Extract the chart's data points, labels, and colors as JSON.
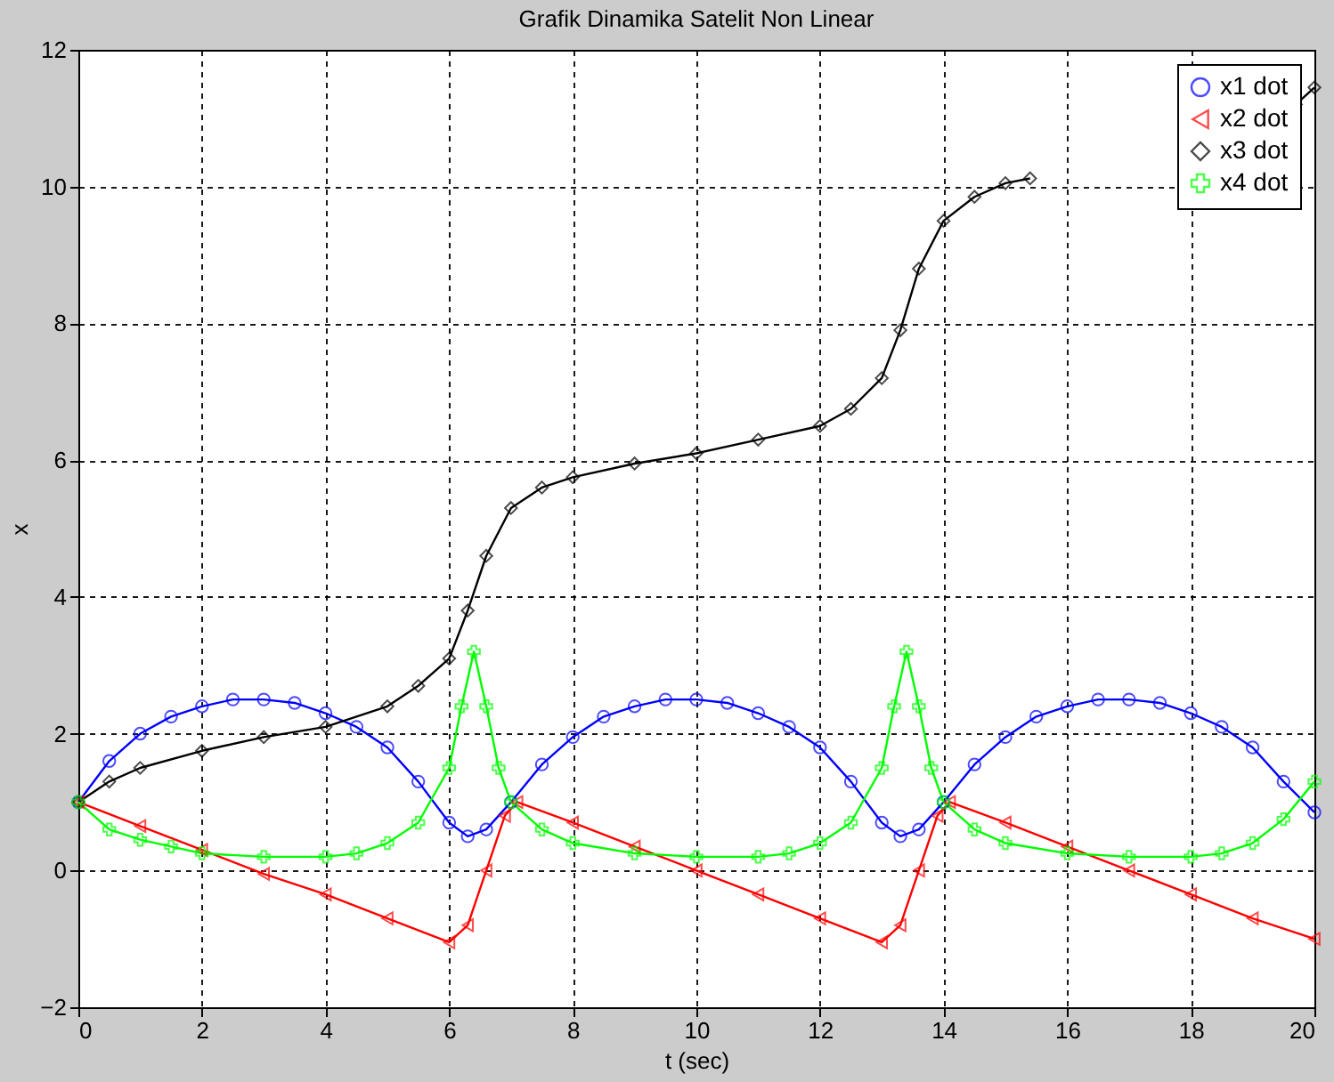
{
  "chart_data": {
    "type": "line",
    "title": "Grafik Dinamika Satelit Non Linear",
    "xlabel": "t (sec)",
    "ylabel": "x",
    "xlim": [
      0,
      20
    ],
    "xticks": [
      0,
      2,
      4,
      6,
      8,
      10,
      12,
      14,
      16,
      18,
      20
    ],
    "ylim": [
      -2,
      12
    ],
    "yticks": [
      -2,
      0,
      2,
      4,
      6,
      8,
      10,
      12
    ],
    "grid": true,
    "legend": "top right",
    "line_style": "solid",
    "series": [
      {
        "name": "x1 dot",
        "color": "#0000ff",
        "marker": "circle",
        "x": [
          0,
          0.5,
          1,
          1.5,
          2,
          2.5,
          3,
          3.5,
          4,
          4.5,
          5,
          5.5,
          6,
          6.3,
          6.6,
          7,
          7.5,
          8,
          8.5,
          9,
          9.5,
          10,
          10.5,
          11,
          11.5,
          12,
          12.5,
          13,
          13.3,
          13.6,
          14,
          14.5,
          15,
          15.5,
          16,
          16.5,
          17,
          17.5,
          18,
          18.5,
          19,
          19.5,
          20
        ],
        "values": [
          1.0,
          1.6,
          2.0,
          2.25,
          2.4,
          2.5,
          2.5,
          2.45,
          2.3,
          2.1,
          1.8,
          1.3,
          0.7,
          0.5,
          0.6,
          1.0,
          1.55,
          1.95,
          2.25,
          2.4,
          2.5,
          2.5,
          2.45,
          2.3,
          2.1,
          1.8,
          1.3,
          0.7,
          0.5,
          0.6,
          1.0,
          1.55,
          1.95,
          2.25,
          2.4,
          2.5,
          2.5,
          2.45,
          2.3,
          2.1,
          1.8,
          1.3,
          0.85
        ]
      },
      {
        "name": "x2 dot",
        "color": "#ff0000",
        "marker": "triangle",
        "x": [
          0,
          1,
          2,
          3,
          4,
          5,
          6,
          6.3,
          6.6,
          6.9,
          7.1,
          8,
          9,
          10,
          11,
          12,
          13,
          13.3,
          13.6,
          13.9,
          14.1,
          15,
          16,
          17,
          18,
          19,
          20
        ],
        "values": [
          1.0,
          0.65,
          0.3,
          -0.05,
          -0.35,
          -0.7,
          -1.05,
          -0.8,
          0.0,
          0.8,
          1.0,
          0.7,
          0.35,
          0.0,
          -0.35,
          -0.7,
          -1.05,
          -0.8,
          0.0,
          0.8,
          1.0,
          0.7,
          0.35,
          0.0,
          -0.35,
          -0.7,
          -1.0
        ]
      },
      {
        "name": "x3 dot",
        "color": "#000000",
        "marker": "diamond",
        "x": [
          0,
          0.5,
          1,
          2,
          3,
          4,
          5,
          5.5,
          6,
          6.3,
          6.6,
          7,
          7.5,
          8,
          9,
          10,
          11,
          12,
          12.5,
          13,
          13.3,
          13.6,
          14,
          14.5,
          15,
          15.4,
          16,
          17,
          18,
          19,
          19.7,
          20
        ],
        "values": [
          1.0,
          1.3,
          1.5,
          1.75,
          1.95,
          2.1,
          2.4,
          2.7,
          3.1,
          3.8,
          4.6,
          5.3,
          5.6,
          5.75,
          5.95,
          6.1,
          6.3,
          6.5,
          6.75,
          7.2,
          7.9,
          8.8,
          9.5,
          9.85,
          10.05,
          10.12,
          null,
          null,
          null,
          null,
          11.2,
          11.45
        ]
      },
      {
        "name": "x4 dot",
        "color": "#00ff00",
        "marker": "cross",
        "x": [
          0,
          0.5,
          1,
          1.5,
          2,
          3,
          4,
          4.5,
          5,
          5.5,
          6,
          6.2,
          6.4,
          6.6,
          6.8,
          7,
          7.5,
          8,
          9,
          10,
          11,
          11.5,
          12,
          12.5,
          13,
          13.2,
          13.4,
          13.6,
          13.8,
          14,
          14.5,
          15,
          16,
          17,
          18,
          18.5,
          19,
          19.5,
          20
        ],
        "values": [
          1.0,
          0.6,
          0.45,
          0.35,
          0.25,
          0.2,
          0.2,
          0.25,
          0.4,
          0.7,
          1.5,
          2.4,
          3.2,
          2.4,
          1.5,
          1.0,
          0.6,
          0.4,
          0.25,
          0.2,
          0.2,
          0.25,
          0.4,
          0.7,
          1.5,
          2.4,
          3.2,
          2.4,
          1.5,
          1.0,
          0.6,
          0.4,
          0.25,
          0.2,
          0.2,
          0.25,
          0.4,
          0.75,
          1.3
        ]
      }
    ]
  }
}
